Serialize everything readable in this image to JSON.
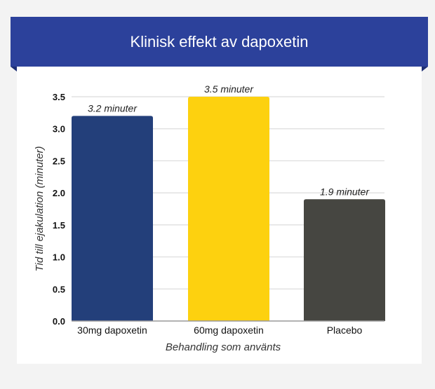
{
  "title": "Klinisk effekt av dapoxetin",
  "chart_data": {
    "type": "bar",
    "title": "Klinisk effekt av dapoxetin",
    "categories": [
      "30mg dapoxetin",
      "60mg dapoxetin",
      "Placebo"
    ],
    "values": [
      3.2,
      3.5,
      1.9
    ],
    "data_labels": [
      "3.2 minuter",
      "3.5 minuter",
      "1.9 minuter"
    ],
    "colors": [
      "#233f7a",
      "#fdd10f",
      "#464641"
    ],
    "xlabel": "Behandling som använts",
    "ylabel": "Tid till ejakulation (minuter)",
    "ylim": [
      0,
      3.5
    ],
    "yticks": [
      "0.0",
      "0.5",
      "1.0",
      "1.5",
      "2.0",
      "2.5",
      "3.0",
      "3.5"
    ],
    "grid": true
  }
}
